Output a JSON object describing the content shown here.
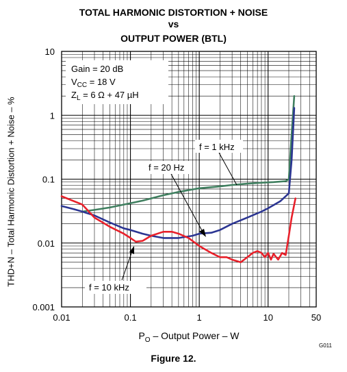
{
  "title_lines": [
    "TOTAL HARMONIC DISTORTION + NOISE",
    "vs",
    "OUTPUT POWER (BTL)"
  ],
  "figure_caption": "Figure 12.",
  "graphic_code": "G011",
  "chart_data": {
    "type": "line",
    "title": "TOTAL HARMONIC DISTORTION + NOISE vs OUTPUT POWER (BTL)",
    "xlabel": "PO – Output Power – W",
    "ylabel": "THD+N – Total Harmonic Distortion + Noise – %",
    "x_scale": "log",
    "y_scale": "log",
    "xlim": [
      0.01,
      50
    ],
    "ylim": [
      0.001,
      10
    ],
    "x_ticks": [
      0.01,
      0.1,
      1,
      10,
      50
    ],
    "x_tick_labels": [
      "0.01",
      "0.1",
      "1",
      "10",
      "50"
    ],
    "y_ticks": [
      0.001,
      0.01,
      0.1,
      1,
      10
    ],
    "y_tick_labels": [
      "0.001",
      "0.01",
      "0.1",
      "1",
      "10"
    ],
    "grid": true,
    "conditions": {
      "gain": "Gain = 20 dB",
      "vcc_main": "V",
      "vcc_sub": "CC",
      "vcc_value": " = 18 V",
      "zl_main": "Z",
      "zl_sub": "L",
      "zl_value": " = 6 Ω + 47 µH"
    },
    "series": [
      {
        "name": "f = 1 kHz",
        "color": "#3f7f5f",
        "points": [
          [
            0.02,
            0.031
          ],
          [
            0.03,
            0.033
          ],
          [
            0.05,
            0.036
          ],
          [
            0.08,
            0.04
          ],
          [
            0.1,
            0.042
          ],
          [
            0.15,
            0.046
          ],
          [
            0.2,
            0.05
          ],
          [
            0.3,
            0.056
          ],
          [
            0.5,
            0.063
          ],
          [
            0.8,
            0.069
          ],
          [
            1,
            0.072
          ],
          [
            2,
            0.077
          ],
          [
            3,
            0.081
          ],
          [
            5,
            0.085
          ],
          [
            8,
            0.088
          ],
          [
            12,
            0.09
          ],
          [
            18,
            0.093
          ],
          [
            20,
            0.1
          ],
          [
            22,
            0.5
          ],
          [
            24,
            2.0
          ]
        ]
      },
      {
        "name": "f = 20 Hz",
        "color": "#2b3592",
        "points": [
          [
            0.01,
            0.038
          ],
          [
            0.015,
            0.034
          ],
          [
            0.02,
            0.031
          ],
          [
            0.03,
            0.027
          ],
          [
            0.05,
            0.021
          ],
          [
            0.08,
            0.017
          ],
          [
            0.1,
            0.016
          ],
          [
            0.15,
            0.014
          ],
          [
            0.2,
            0.013
          ],
          [
            0.3,
            0.012
          ],
          [
            0.5,
            0.012
          ],
          [
            0.8,
            0.013
          ],
          [
            1,
            0.014
          ],
          [
            1.5,
            0.0145
          ],
          [
            2,
            0.016
          ],
          [
            3,
            0.02
          ],
          [
            5,
            0.025
          ],
          [
            8,
            0.031
          ],
          [
            10,
            0.035
          ],
          [
            15,
            0.045
          ],
          [
            20,
            0.06
          ],
          [
            22,
            0.2
          ],
          [
            24,
            1.3
          ]
        ]
      },
      {
        "name": "f = 10 kHz",
        "color": "#e8202a",
        "points": [
          [
            0.01,
            0.054
          ],
          [
            0.02,
            0.04
          ],
          [
            0.03,
            0.025
          ],
          [
            0.05,
            0.018
          ],
          [
            0.08,
            0.014
          ],
          [
            0.1,
            0.012
          ],
          [
            0.12,
            0.0105
          ],
          [
            0.15,
            0.0108
          ],
          [
            0.2,
            0.013
          ],
          [
            0.3,
            0.015
          ],
          [
            0.4,
            0.015
          ],
          [
            0.5,
            0.014
          ],
          [
            0.7,
            0.012
          ],
          [
            1,
            0.009
          ],
          [
            1.5,
            0.007
          ],
          [
            2,
            0.006
          ],
          [
            2.5,
            0.006
          ],
          [
            3,
            0.0055
          ],
          [
            4,
            0.005
          ],
          [
            5,
            0.006
          ],
          [
            6,
            0.007
          ],
          [
            7,
            0.0075
          ],
          [
            8,
            0.007
          ],
          [
            9,
            0.006
          ],
          [
            10,
            0.007
          ],
          [
            11,
            0.0055
          ],
          [
            12,
            0.0068
          ],
          [
            14,
            0.0055
          ],
          [
            16,
            0.007
          ],
          [
            18,
            0.0065
          ],
          [
            20,
            0.013
          ],
          [
            22,
            0.025
          ],
          [
            25,
            0.05
          ]
        ]
      }
    ]
  }
}
